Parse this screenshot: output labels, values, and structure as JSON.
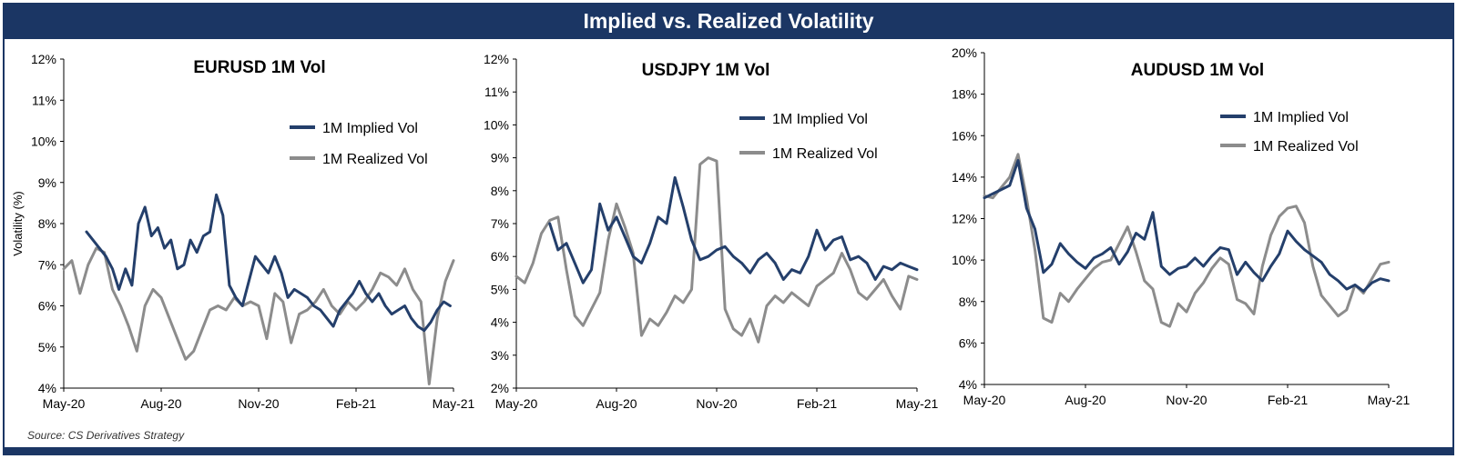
{
  "header": {
    "title": "Implied vs. Realized Volatility"
  },
  "footer": {
    "source": "Source: CS Derivatives Strategy"
  },
  "colors": {
    "implied": "#243f6b",
    "realized": "#8c8c8c",
    "banner": "#1b3664"
  },
  "chart_data": [
    {
      "type": "line",
      "title": "EURUSD 1M Vol",
      "xlabel": "",
      "ylabel": "Volatility (%)",
      "ylim": [
        4,
        12
      ],
      "y_ticks": [
        "4%",
        "5%",
        "6%",
        "7%",
        "8%",
        "9%",
        "10%",
        "11%",
        "12%"
      ],
      "x_ticks": [
        "May-20",
        "Aug-20",
        "Nov-20",
        "Feb-21",
        "May-21"
      ],
      "xlim": [
        0,
        12
      ],
      "legend": "top-right",
      "series": [
        {
          "name": "1M Implied Vol",
          "x": [
            0.7,
            0.9,
            1.1,
            1.3,
            1.5,
            1.7,
            1.9,
            2.1,
            2.3,
            2.5,
            2.7,
            2.9,
            3.1,
            3.3,
            3.5,
            3.7,
            3.9,
            4.1,
            4.3,
            4.5,
            4.7,
            4.9,
            5.1,
            5.3,
            5.5,
            5.7,
            5.9,
            6.1,
            6.3,
            6.5,
            6.7,
            6.9,
            7.1,
            7.3,
            7.5,
            7.7,
            7.9,
            8.1,
            8.3,
            8.5,
            8.7,
            8.9,
            9.1,
            9.3,
            9.5,
            9.7,
            9.9,
            10.1,
            10.3,
            10.5,
            10.7,
            10.9,
            11.1,
            11.3,
            11.5,
            11.7,
            11.9
          ],
          "y": [
            7.8,
            7.6,
            7.4,
            7.2,
            6.9,
            6.4,
            6.9,
            6.5,
            8.0,
            8.4,
            7.7,
            7.9,
            7.4,
            7.6,
            6.9,
            7.0,
            7.6,
            7.3,
            7.7,
            7.8,
            8.7,
            8.2,
            6.5,
            6.2,
            6.0,
            6.6,
            7.2,
            7.0,
            6.8,
            7.2,
            6.8,
            6.2,
            6.4,
            6.3,
            6.2,
            6.0,
            5.9,
            5.7,
            5.5,
            5.9,
            6.1,
            6.3,
            6.6,
            6.3,
            6.1,
            6.3,
            6.0,
            5.8,
            5.9,
            6.0,
            5.7,
            5.5,
            5.4,
            5.6,
            5.9,
            6.1,
            6.0
          ]
        },
        {
          "name": "1M Realized Vol",
          "x": [
            0,
            0.25,
            0.5,
            0.75,
            1.0,
            1.25,
            1.5,
            1.75,
            2.0,
            2.25,
            2.5,
            2.75,
            3.0,
            3.25,
            3.5,
            3.75,
            4.0,
            4.25,
            4.5,
            4.75,
            5.0,
            5.25,
            5.5,
            5.75,
            6.0,
            6.25,
            6.5,
            6.75,
            7.0,
            7.25,
            7.5,
            7.75,
            8.0,
            8.25,
            8.5,
            8.75,
            9.0,
            9.25,
            9.5,
            9.75,
            10.0,
            10.25,
            10.5,
            10.75,
            11.0,
            11.25,
            11.5,
            11.75,
            12.0
          ],
          "y": [
            6.9,
            7.1,
            6.3,
            7.0,
            7.4,
            7.3,
            6.4,
            6.0,
            5.5,
            4.9,
            6.0,
            6.4,
            6.2,
            5.7,
            5.2,
            4.7,
            4.9,
            5.4,
            5.9,
            6.0,
            5.9,
            6.2,
            6.0,
            6.1,
            6.0,
            5.2,
            6.3,
            6.1,
            5.1,
            5.8,
            5.9,
            6.1,
            6.4,
            6.0,
            5.8,
            6.1,
            5.9,
            6.1,
            6.4,
            6.8,
            6.7,
            6.5,
            6.9,
            6.4,
            6.1,
            4.1,
            5.7,
            6.6,
            7.1
          ]
        }
      ]
    },
    {
      "type": "line",
      "title": "USDJPY 1M Vol",
      "xlabel": "",
      "ylabel": "",
      "ylim": [
        2,
        12
      ],
      "y_ticks": [
        "2%",
        "3%",
        "4%",
        "5%",
        "6%",
        "7%",
        "8%",
        "9%",
        "10%",
        "11%",
        "12%"
      ],
      "x_ticks": [
        "May-20",
        "Aug-20",
        "Nov-20",
        "Feb-21",
        "May-21"
      ],
      "xlim": [
        0,
        12
      ],
      "legend": "top-right",
      "series": [
        {
          "name": "1M Implied Vol",
          "x": [
            1.0,
            1.25,
            1.5,
            1.75,
            2.0,
            2.25,
            2.5,
            2.75,
            3.0,
            3.25,
            3.5,
            3.75,
            4.0,
            4.25,
            4.5,
            4.75,
            5.0,
            5.25,
            5.5,
            5.75,
            6.0,
            6.25,
            6.5,
            6.75,
            7.0,
            7.25,
            7.5,
            7.75,
            8.0,
            8.25,
            8.5,
            8.75,
            9.0,
            9.25,
            9.5,
            9.75,
            10.0,
            10.25,
            10.5,
            10.75,
            11.0,
            11.25,
            11.5,
            11.75,
            12.0
          ],
          "y": [
            7.0,
            6.2,
            6.4,
            5.8,
            5.2,
            5.6,
            7.6,
            6.8,
            7.2,
            6.6,
            6.0,
            5.8,
            6.4,
            7.2,
            7.0,
            8.4,
            7.5,
            6.5,
            5.9,
            6.0,
            6.2,
            6.3,
            6.0,
            5.8,
            5.5,
            5.9,
            6.1,
            5.8,
            5.3,
            5.6,
            5.5,
            6.0,
            6.8,
            6.2,
            6.5,
            6.6,
            5.9,
            6.0,
            5.8,
            5.3,
            5.7,
            5.6,
            5.8,
            5.7,
            5.6
          ]
        },
        {
          "name": "1M Realized Vol",
          "x": [
            0,
            0.25,
            0.5,
            0.75,
            1.0,
            1.25,
            1.5,
            1.75,
            2.0,
            2.25,
            2.5,
            2.75,
            3.0,
            3.25,
            3.5,
            3.75,
            4.0,
            4.25,
            4.5,
            4.75,
            5.0,
            5.25,
            5.5,
            5.75,
            6.0,
            6.25,
            6.5,
            6.75,
            7.0,
            7.25,
            7.5,
            7.75,
            8.0,
            8.25,
            8.5,
            8.75,
            9.0,
            9.25,
            9.5,
            9.75,
            10.0,
            10.25,
            10.5,
            10.75,
            11.0,
            11.25,
            11.5,
            11.75,
            12.0
          ],
          "y": [
            5.4,
            5.2,
            5.8,
            6.7,
            7.1,
            7.2,
            5.6,
            4.2,
            3.9,
            4.4,
            4.9,
            6.5,
            7.6,
            6.9,
            6.1,
            3.6,
            4.1,
            3.9,
            4.3,
            4.8,
            4.6,
            5.0,
            8.8,
            9.0,
            8.9,
            4.4,
            3.8,
            3.6,
            4.1,
            3.4,
            4.5,
            4.8,
            4.6,
            4.9,
            4.7,
            4.5,
            5.1,
            5.3,
            5.5,
            6.1,
            5.6,
            4.9,
            4.7,
            5.0,
            5.3,
            4.8,
            4.4,
            5.4,
            5.3
          ]
        }
      ]
    },
    {
      "type": "line",
      "title": "AUDUSD 1M Vol",
      "xlabel": "",
      "ylabel": "",
      "ylim": [
        4,
        20
      ],
      "y_ticks": [
        "4%",
        "6%",
        "8%",
        "10%",
        "12%",
        "14%",
        "16%",
        "18%",
        "20%"
      ],
      "x_ticks": [
        "May-20",
        "Aug-20",
        "Nov-20",
        "Feb-21",
        "May-21"
      ],
      "xlim": [
        0,
        12
      ],
      "legend": "top-right",
      "series": [
        {
          "name": "1M Implied Vol",
          "x": [
            0,
            0.25,
            0.5,
            0.75,
            1.0,
            1.25,
            1.5,
            1.75,
            2.0,
            2.25,
            2.5,
            2.75,
            3.0,
            3.25,
            3.5,
            3.75,
            4.0,
            4.25,
            4.5,
            4.75,
            5.0,
            5.25,
            5.5,
            5.75,
            6.0,
            6.25,
            6.5,
            6.75,
            7.0,
            7.25,
            7.5,
            7.75,
            8.0,
            8.25,
            8.5,
            8.75,
            9.0,
            9.25,
            9.5,
            9.75,
            10.0,
            10.25,
            10.5,
            10.75,
            11.0,
            11.25,
            11.5,
            11.75,
            12.0
          ],
          "y": [
            13.0,
            13.2,
            13.4,
            13.6,
            14.8,
            12.5,
            11.5,
            9.4,
            9.8,
            10.8,
            10.3,
            9.9,
            9.6,
            10.1,
            10.3,
            10.6,
            9.8,
            10.4,
            11.3,
            11.0,
            12.3,
            9.7,
            9.3,
            9.6,
            9.7,
            10.1,
            9.7,
            10.2,
            10.6,
            10.5,
            9.3,
            9.9,
            9.4,
            9.0,
            9.7,
            10.3,
            11.4,
            10.9,
            10.5,
            10.2,
            9.9,
            9.3,
            9.0,
            8.6,
            8.8,
            8.5,
            8.9,
            9.1,
            9.0
          ]
        },
        {
          "name": "1M Realized Vol",
          "x": [
            0,
            0.25,
            0.5,
            0.75,
            1.0,
            1.25,
            1.5,
            1.75,
            2.0,
            2.25,
            2.5,
            2.75,
            3.0,
            3.25,
            3.5,
            3.75,
            4.0,
            4.25,
            4.5,
            4.75,
            5.0,
            5.25,
            5.5,
            5.75,
            6.0,
            6.25,
            6.5,
            6.75,
            7.0,
            7.25,
            7.5,
            7.75,
            8.0,
            8.25,
            8.5,
            8.75,
            9.0,
            9.25,
            9.5,
            9.75,
            10.0,
            10.25,
            10.5,
            10.75,
            11.0,
            11.25,
            11.5,
            11.75,
            12.0
          ],
          "y": [
            13.1,
            13.0,
            13.5,
            14.0,
            15.1,
            13.0,
            10.5,
            7.2,
            7.0,
            8.4,
            8.0,
            8.6,
            9.1,
            9.6,
            9.9,
            10.0,
            10.8,
            11.6,
            10.4,
            9.0,
            8.6,
            7.0,
            6.8,
            7.9,
            7.5,
            8.4,
            8.9,
            9.6,
            10.1,
            9.8,
            8.1,
            7.9,
            7.4,
            9.7,
            11.2,
            12.1,
            12.5,
            12.6,
            11.8,
            9.7,
            8.3,
            7.8,
            7.3,
            7.6,
            8.8,
            8.4,
            9.1,
            9.8,
            9.9
          ]
        }
      ]
    }
  ]
}
